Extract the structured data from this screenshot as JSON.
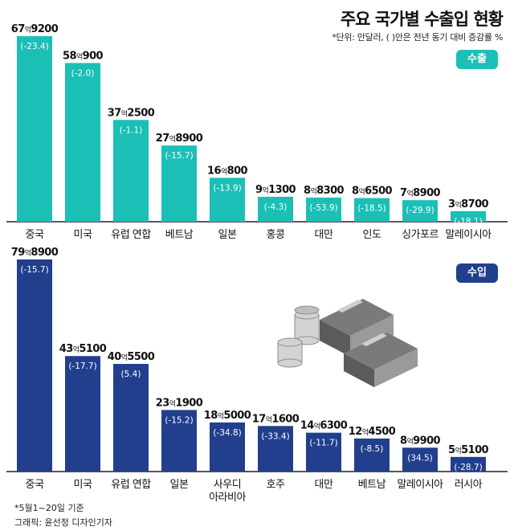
{
  "header": {
    "title": "주요 국가별 수출입 현황",
    "unit_note": "*단위: 만달러, ( )안은 전년 동기 대비 증감률 %"
  },
  "colors": {
    "export": "#1bbfb6",
    "import": "#213f8c",
    "axis": "#222222"
  },
  "footer": {
    "note": "*5월1~20일 기준",
    "credit": "그래픽: 윤선정 디자인기자"
  },
  "illustration": {
    "icon": "money-stack-coins-icon"
  },
  "chart_data": [
    {
      "type": "bar",
      "badge": "수출",
      "categories": [
        "중국",
        "미국",
        "유럽 연합",
        "베트남",
        "일본",
        "홍콩",
        "대만",
        "인도",
        "싱가포르",
        "말레이시아"
      ],
      "value_labels": [
        [
          "67",
          "억",
          "9200"
        ],
        [
          "58",
          "억",
          "900"
        ],
        [
          "37",
          "억",
          "2500"
        ],
        [
          "27",
          "억",
          "8900"
        ],
        [
          "16",
          "억",
          "800"
        ],
        [
          "9",
          "억",
          "1300"
        ],
        [
          "8",
          "억",
          "8300"
        ],
        [
          "8",
          "억",
          "6500"
        ],
        [
          "7",
          "억",
          "8900"
        ],
        [
          "3",
          "억",
          "8700"
        ]
      ],
      "values": [
        679200,
        580900,
        372500,
        278900,
        160800,
        91300,
        88300,
        86500,
        78900,
        38700
      ],
      "changes": [
        "(-23.4)",
        "(-2.0)",
        "(-1.1)",
        "(-15.7)",
        "(-13.9)",
        "(-4.3)",
        "(-53.9)",
        "(-18.5)",
        "(-29.9)",
        "(-18.1)"
      ]
    },
    {
      "type": "bar",
      "badge": "수입",
      "categories": [
        "중국",
        "미국",
        "유럽 연합",
        "일본",
        [
          "사우디",
          "아라비아"
        ],
        "호주",
        "대만",
        "베트남",
        "말레이시아",
        "러시아"
      ],
      "value_labels": [
        [
          "79",
          "억",
          "8900"
        ],
        [
          "43",
          "억",
          "5100"
        ],
        [
          "40",
          "억",
          "5500"
        ],
        [
          "23",
          "억",
          "1900"
        ],
        [
          "18",
          "억",
          "5000"
        ],
        [
          "17",
          "억",
          "1600"
        ],
        [
          "14",
          "억",
          "6300"
        ],
        [
          "12",
          "억",
          "4500"
        ],
        [
          "8",
          "억",
          "9900"
        ],
        [
          "5",
          "억",
          "5100"
        ]
      ],
      "values": [
        798900,
        435100,
        405500,
        231900,
        185000,
        171600,
        146300,
        124500,
        89900,
        55100
      ],
      "changes": [
        "(-15.7)",
        "(-17.7)",
        "(5.4)",
        "(-15.2)",
        "(-34.8)",
        "(-33.4)",
        "(-11.7)",
        "(-8.5)",
        "(34.5)",
        "(-28.7)"
      ]
    }
  ]
}
